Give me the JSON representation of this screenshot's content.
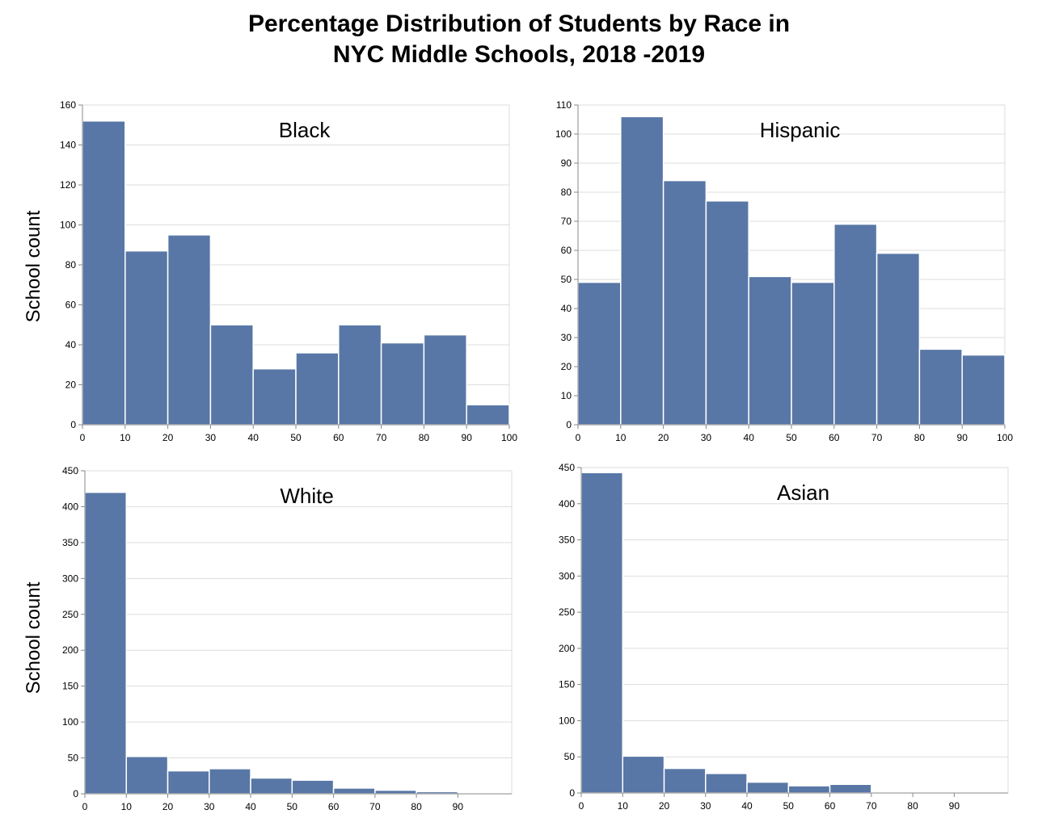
{
  "title_line1": "Percentage Distribution of Students by Race in",
  "title_line2": "NYC Middle Schools, 2018 -2019",
  "ylabel": "School count",
  "colors": {
    "bar": "#5877a6",
    "bar_edge": "#ffffff",
    "grid": "#dddddd",
    "axis": "#888888"
  },
  "chart_data": [
    {
      "type": "bar",
      "title": "Black",
      "bins": [
        [
          0,
          10
        ],
        [
          10,
          20
        ],
        [
          20,
          30
        ],
        [
          30,
          40
        ],
        [
          40,
          50
        ],
        [
          50,
          60
        ],
        [
          60,
          70
        ],
        [
          70,
          80
        ],
        [
          80,
          90
        ],
        [
          90,
          100
        ]
      ],
      "values": [
        152,
        87,
        95,
        50,
        28,
        36,
        50,
        41,
        45,
        10
      ],
      "xticks": [
        0,
        10,
        20,
        30,
        40,
        50,
        60,
        70,
        80,
        90,
        100
      ],
      "yticks": [
        0,
        20,
        40,
        60,
        80,
        100,
        120,
        140,
        160
      ],
      "xlim": [
        0,
        100
      ],
      "ylim": [
        0,
        160
      ],
      "ylabel": "School count",
      "grid": true
    },
    {
      "type": "bar",
      "title": "Hispanic",
      "bins": [
        [
          0,
          10
        ],
        [
          10,
          20
        ],
        [
          20,
          30
        ],
        [
          30,
          40
        ],
        [
          40,
          50
        ],
        [
          50,
          60
        ],
        [
          60,
          70
        ],
        [
          70,
          80
        ],
        [
          80,
          90
        ],
        [
          90,
          100
        ]
      ],
      "values": [
        49,
        106,
        84,
        77,
        51,
        49,
        69,
        59,
        26,
        24
      ],
      "xticks": [
        0,
        10,
        20,
        30,
        40,
        50,
        60,
        70,
        80,
        90,
        100
      ],
      "yticks": [
        0,
        10,
        20,
        30,
        40,
        50,
        60,
        70,
        80,
        90,
        100,
        110
      ],
      "xlim": [
        0,
        100
      ],
      "ylim": [
        0,
        110
      ],
      "ylabel": "",
      "grid": true
    },
    {
      "type": "bar",
      "title": "White",
      "bins": [
        [
          0,
          10
        ],
        [
          10,
          20
        ],
        [
          20,
          30
        ],
        [
          30,
          40
        ],
        [
          40,
          50
        ],
        [
          50,
          60
        ],
        [
          60,
          70
        ],
        [
          70,
          80
        ],
        [
          80,
          90
        ]
      ],
      "values": [
        420,
        52,
        32,
        35,
        22,
        19,
        8,
        5,
        3
      ],
      "xticks": [
        0,
        10,
        20,
        30,
        40,
        50,
        60,
        70,
        80,
        90
      ],
      "yticks": [
        0,
        50,
        100,
        150,
        200,
        250,
        300,
        350,
        400,
        450
      ],
      "xlim": [
        0,
        103
      ],
      "ylim": [
        0,
        450
      ],
      "ylabel": "School count",
      "grid": true
    },
    {
      "type": "bar",
      "title": "Asian",
      "bins": [
        [
          0,
          10
        ],
        [
          10,
          20
        ],
        [
          20,
          30
        ],
        [
          30,
          40
        ],
        [
          40,
          50
        ],
        [
          50,
          60
        ],
        [
          60,
          70
        ],
        [
          70,
          80
        ],
        [
          80,
          90
        ]
      ],
      "values": [
        443,
        51,
        34,
        27,
        15,
        10,
        12,
        1,
        1
      ],
      "xticks": [
        0,
        10,
        20,
        30,
        40,
        50,
        60,
        70,
        80,
        90
      ],
      "yticks": [
        0,
        50,
        100,
        150,
        200,
        250,
        300,
        350,
        400,
        450
      ],
      "xlim": [
        0,
        103
      ],
      "ylim": [
        0,
        450
      ],
      "ylabel": "",
      "grid": true
    }
  ]
}
